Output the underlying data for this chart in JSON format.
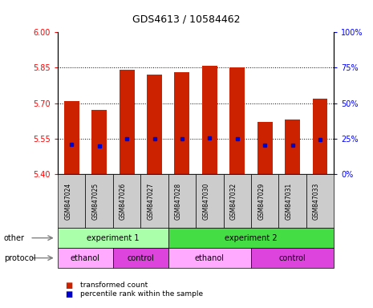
{
  "title": "GDS4613 / 10584462",
  "samples": [
    "GSM847024",
    "GSM847025",
    "GSM847026",
    "GSM847027",
    "GSM847028",
    "GSM847030",
    "GSM847032",
    "GSM847029",
    "GSM847031",
    "GSM847033"
  ],
  "bar_tops": [
    5.71,
    5.67,
    5.84,
    5.82,
    5.83,
    5.86,
    5.85,
    5.62,
    5.63,
    5.72
  ],
  "bar_bottoms": [
    5.4,
    5.4,
    5.4,
    5.4,
    5.4,
    5.4,
    5.4,
    5.4,
    5.4,
    5.4
  ],
  "percentile_vals": [
    5.525,
    5.52,
    5.55,
    5.548,
    5.548,
    5.552,
    5.55,
    5.523,
    5.523,
    5.547
  ],
  "bar_color": "#cc2200",
  "percentile_color": "#0000cc",
  "ylim": [
    5.4,
    6.0
  ],
  "yticks_left": [
    5.4,
    5.55,
    5.7,
    5.85,
    6.0
  ],
  "yticks_right": [
    0,
    25,
    50,
    75,
    100
  ],
  "grid_vals": [
    5.55,
    5.7,
    5.85
  ],
  "other_row": [
    {
      "label": "experiment 1",
      "start": 0,
      "end": 4,
      "color": "#aaffaa"
    },
    {
      "label": "experiment 2",
      "start": 4,
      "end": 10,
      "color": "#44dd44"
    }
  ],
  "protocol_row": [
    {
      "label": "ethanol",
      "start": 0,
      "end": 2,
      "color": "#ffaaff"
    },
    {
      "label": "control",
      "start": 2,
      "end": 4,
      "color": "#dd44dd"
    },
    {
      "label": "ethanol",
      "start": 4,
      "end": 7,
      "color": "#ffaaff"
    },
    {
      "label": "control",
      "start": 7,
      "end": 10,
      "color": "#dd44dd"
    }
  ],
  "legend_items": [
    {
      "label": "transformed count",
      "color": "#cc2200"
    },
    {
      "label": "percentile rank within the sample",
      "color": "#0000cc"
    }
  ],
  "bar_width": 0.55,
  "xtick_bg": "#cccccc"
}
